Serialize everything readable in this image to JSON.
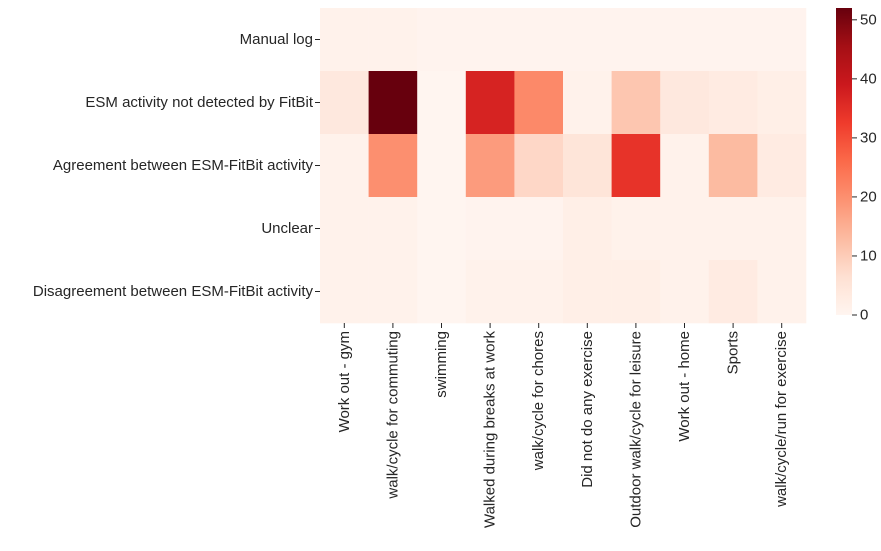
{
  "chart_data": {
    "type": "heatmap",
    "title": "",
    "xlabel": "",
    "ylabel": "",
    "rows": [
      "Manual log",
      "ESM activity not detected by FitBit",
      "Agreement between ESM-FitBit activity",
      "Unclear",
      "Disagreement between ESM-FitBit activity"
    ],
    "columns": [
      "Work out - gym",
      "walk/cycle for commuting",
      "swimming",
      "Walked during breaks at work",
      "walk/cycle for chores",
      "Did not do any exercise",
      "Outdoor walk/cycle for leisure",
      "Work out - home",
      "Sports",
      "walk/cycle/run for exercise"
    ],
    "values": [
      [
        1,
        1,
        0.5,
        0.5,
        0.5,
        0.5,
        0.5,
        0.5,
        0.5,
        0.5
      ],
      [
        4,
        52,
        0,
        37,
        21,
        1,
        11,
        4,
        3,
        2
      ],
      [
        1,
        20,
        0,
        18,
        8,
        5,
        34,
        1,
        13,
        3
      ],
      [
        1,
        1,
        0,
        0.5,
        0.5,
        2,
        1,
        1,
        1,
        1
      ],
      [
        1,
        1,
        0,
        1,
        1,
        2,
        2,
        1,
        3,
        1
      ]
    ],
    "colorbar": {
      "min": 0,
      "max": 52,
      "ticks": [
        0,
        10,
        20,
        30,
        40,
        50
      ],
      "colormap": "Reds",
      "low_color": "#fff5f0",
      "high_color": "#67000d"
    }
  }
}
